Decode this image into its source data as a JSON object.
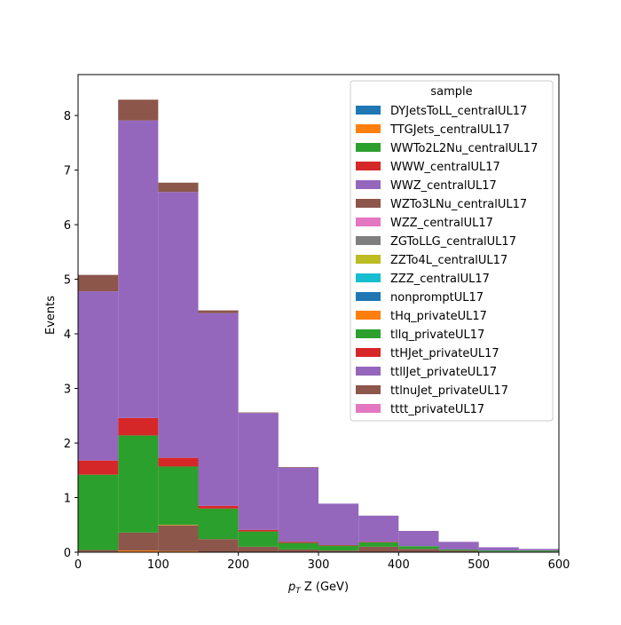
{
  "chart_data": {
    "type": "bar",
    "stacked": true,
    "histogram": true,
    "xlabel_prefix": "p",
    "xlabel_sub": "T",
    "xlabel_rest": " Z (GeV)",
    "ylabel": "Events",
    "xlim": [
      0,
      600
    ],
    "ylim": [
      0,
      8.75
    ],
    "xticks": [
      0,
      100,
      200,
      300,
      400,
      500,
      600
    ],
    "yticks": [
      0,
      1,
      2,
      3,
      4,
      5,
      6,
      7,
      8
    ],
    "grid": false,
    "legend_position": "top-right",
    "legend_title": "sample",
    "bin_edges": [
      0,
      50,
      100,
      150,
      200,
      250,
      300,
      350,
      400,
      450,
      500,
      550,
      600
    ],
    "series": [
      {
        "name": "DYJetsToLL_centralUL17",
        "color": "#1f77b4",
        "values": [
          0,
          0,
          0,
          0,
          0,
          0,
          0,
          0,
          0,
          0,
          0,
          0
        ]
      },
      {
        "name": "TTGJets_centralUL17",
        "color": "#ff7f0e",
        "values": [
          0.01,
          0.03,
          0.02,
          0,
          0,
          0,
          0,
          0,
          0,
          0,
          0,
          0
        ]
      },
      {
        "name": "WWTo2L2Nu_centralUL17",
        "color": "#2ca02c",
        "values": [
          0,
          0,
          0,
          0,
          0,
          0,
          0,
          0,
          0,
          0,
          0,
          0
        ]
      },
      {
        "name": "WWW_centralUL17",
        "color": "#d62728",
        "values": [
          0,
          0,
          0,
          0,
          0,
          0,
          0,
          0,
          0,
          0,
          0,
          0
        ]
      },
      {
        "name": "WWZ_centralUL17",
        "color": "#9467bd",
        "values": [
          0,
          0,
          0,
          0,
          0,
          0,
          0,
          0,
          0,
          0,
          0,
          0
        ]
      },
      {
        "name": "WZTo3LNu_centralUL17",
        "color": "#8c564b",
        "values": [
          0.03,
          0.33,
          0.47,
          0.24,
          0.1,
          0.05,
          0.03,
          0.1,
          0.06,
          0.03,
          0.01,
          0.01
        ]
      },
      {
        "name": "WZZ_centralUL17",
        "color": "#e377c2",
        "values": [
          0,
          0,
          0,
          0,
          0,
          0,
          0,
          0,
          0,
          0,
          0,
          0
        ]
      },
      {
        "name": "ZGToLLG_centralUL17",
        "color": "#7f7f7f",
        "values": [
          0,
          0,
          0,
          0,
          0,
          0,
          0,
          0,
          0,
          0,
          0,
          0
        ]
      },
      {
        "name": "ZZTo4L_centralUL17",
        "color": "#bcbd22",
        "values": [
          0,
          0,
          0,
          0,
          0,
          0,
          0,
          0,
          0,
          0,
          0,
          0
        ]
      },
      {
        "name": "ZZZ_centralUL17",
        "color": "#17becf",
        "values": [
          0,
          0,
          0,
          0,
          0,
          0,
          0,
          0,
          0,
          0,
          0,
          0
        ]
      },
      {
        "name": "nonpromptUL17",
        "color": "#1f77b4",
        "values": [
          0,
          0,
          0,
          0,
          0,
          0,
          0,
          0,
          0,
          0,
          0,
          0
        ]
      },
      {
        "name": "tHq_privateUL17",
        "color": "#ff7f0e",
        "values": [
          0,
          0,
          0.01,
          0,
          0,
          0,
          0,
          0,
          0,
          0,
          0,
          0
        ]
      },
      {
        "name": "tllq_privateUL17",
        "color": "#2ca02c",
        "values": [
          1.38,
          1.78,
          1.07,
          0.56,
          0.28,
          0.12,
          0.09,
          0.08,
          0.05,
          0.02,
          0.02,
          0.02
        ]
      },
      {
        "name": "ttHJet_privateUL17",
        "color": "#d62728",
        "values": [
          0.26,
          0.32,
          0.16,
          0.05,
          0.03,
          0.02,
          0.01,
          0.01,
          0.0,
          0.0,
          0.0,
          0.0
        ]
      },
      {
        "name": "ttllJet_privateUL17",
        "color": "#9467bd",
        "values": [
          3.1,
          5.45,
          4.87,
          3.53,
          2.14,
          1.36,
          0.76,
          0.48,
          0.28,
          0.14,
          0.06,
          0.03
        ]
      },
      {
        "name": "ttlnuJet_privateUL17",
        "color": "#8c564b",
        "values": [
          0.3,
          0.38,
          0.17,
          0.05,
          0.01,
          0.01,
          0.0,
          0.0,
          0.0,
          0.0,
          0.0,
          0.0
        ]
      },
      {
        "name": "tttt_privateUL17",
        "color": "#e377c2",
        "values": [
          0,
          0,
          0,
          0,
          0,
          0,
          0,
          0,
          0,
          0,
          0,
          0
        ]
      }
    ]
  }
}
